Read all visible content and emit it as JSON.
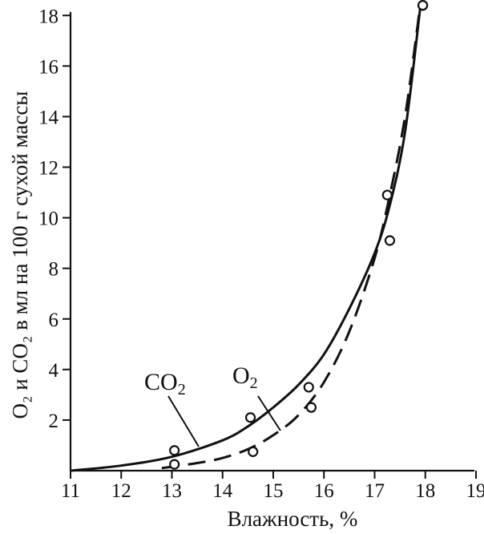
{
  "chart_data": {
    "type": "line",
    "xlabel": "Влажность, %",
    "ylabel": "O₂ и CO₂ в мл на 100 г сухой массы",
    "xlim": [
      11,
      19
    ],
    "ylim": [
      0,
      18.5
    ],
    "x_ticks": [
      "11",
      "12",
      "13",
      "14",
      "15",
      "16",
      "17",
      "18",
      "19"
    ],
    "y_ticks": [
      "2",
      "4",
      "6",
      "8",
      "10",
      "12",
      "14",
      "16",
      "18"
    ],
    "grid": false,
    "series": [
      {
        "name": "CO₂",
        "label_main": "CO",
        "label_sub": "2",
        "style": "solid",
        "curve_x": [
          11.0,
          12.0,
          13.0,
          14.0,
          14.5,
          15.0,
          15.5,
          16.0,
          16.5,
          17.0,
          17.3,
          17.6,
          17.9
        ],
        "curve_y": [
          0.0,
          0.2,
          0.55,
          1.2,
          1.75,
          2.5,
          3.4,
          4.6,
          6.4,
          8.6,
          10.5,
          13.4,
          18.3
        ],
        "points_x": [
          13.05,
          14.55,
          15.7,
          17.3,
          17.95
        ],
        "points_y": [
          0.8,
          2.1,
          3.3,
          9.1,
          18.4
        ]
      },
      {
        "name": "O₂",
        "label_main": "O",
        "label_sub": "2",
        "style": "dashed",
        "curve_x": [
          12.8,
          13.5,
          14.0,
          14.5,
          15.0,
          15.5,
          16.0,
          16.5,
          17.0,
          17.3,
          17.6,
          17.9
        ],
        "curve_y": [
          0.1,
          0.3,
          0.5,
          0.85,
          1.4,
          2.2,
          3.5,
          5.5,
          8.4,
          10.9,
          14.0,
          18.4
        ],
        "points_x": [
          13.05,
          14.6,
          15.75,
          17.25,
          17.95
        ],
        "points_y": [
          0.25,
          0.75,
          2.5,
          10.9,
          18.4
        ]
      }
    ]
  }
}
